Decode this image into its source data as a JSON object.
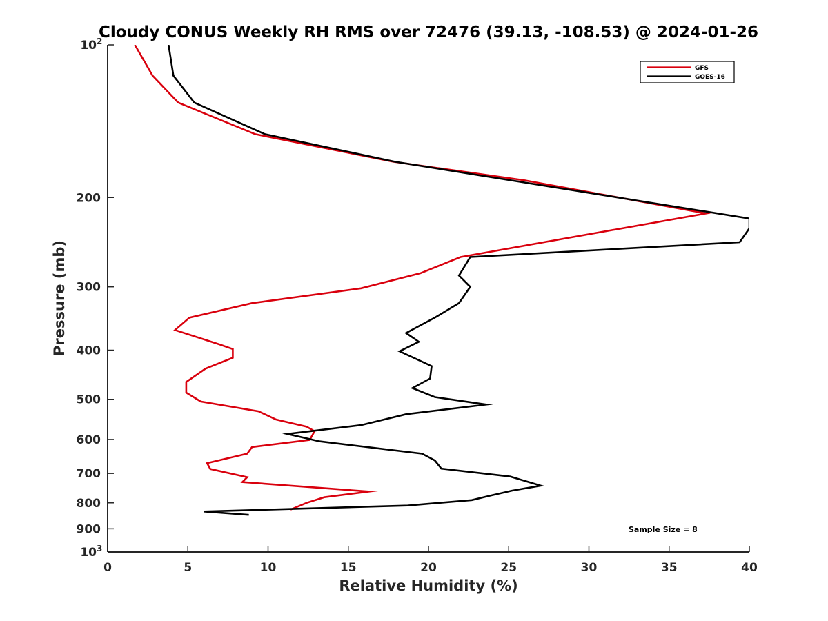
{
  "chart_data": {
    "type": "line",
    "title": "Cloudy CONUS Weekly RH RMS over 72476 (39.13, -108.53) @ 2024-01-26",
    "xlabel": "Relative Humidity (%)",
    "ylabel": "Pressure (mb)",
    "xlim": [
      0,
      40
    ],
    "ylim": [
      100,
      1000
    ],
    "y_scale": "log",
    "y_reversed": true,
    "x_ticks": [
      "0",
      "5",
      "10",
      "15",
      "20",
      "25",
      "30",
      "35",
      "40"
    ],
    "y_ticks": [
      {
        "value": 100,
        "label": "10",
        "exp": "2"
      },
      {
        "value": 200,
        "label": "200"
      },
      {
        "value": 300,
        "label": "300"
      },
      {
        "value": 400,
        "label": "400"
      },
      {
        "value": 500,
        "label": "500"
      },
      {
        "value": 600,
        "label": "600"
      },
      {
        "value": 700,
        "label": "700"
      },
      {
        "value": 800,
        "label": "800"
      },
      {
        "value": 900,
        "label": "900"
      },
      {
        "value": 1000,
        "label": "10",
        "exp": "3"
      }
    ],
    "annotation": "Sample Size = 8",
    "legend_position": "top-right",
    "grid": false,
    "series": [
      {
        "name": "GFS",
        "color": "#d9000d",
        "points": [
          [
            1.7,
            100
          ],
          [
            2.8,
            115
          ],
          [
            4.4,
            130
          ],
          [
            9.2,
            150
          ],
          [
            17.8,
            170
          ],
          [
            26,
            185
          ],
          [
            37.3,
            215
          ],
          [
            22,
            262
          ],
          [
            19.5,
            282
          ],
          [
            15.8,
            302
          ],
          [
            9,
            323
          ],
          [
            5.1,
            345
          ],
          [
            4.2,
            365
          ],
          [
            7,
            390
          ],
          [
            7.8,
            398
          ],
          [
            7.8,
            414
          ],
          [
            6.1,
            435
          ],
          [
            4.9,
            462
          ],
          [
            4.9,
            485
          ],
          [
            5.8,
            505
          ],
          [
            9.4,
            528
          ],
          [
            10.5,
            548
          ],
          [
            12.4,
            566
          ],
          [
            12.9,
            578
          ],
          [
            12.6,
            601
          ],
          [
            9,
            621
          ],
          [
            8.7,
            640
          ],
          [
            6.2,
            668
          ],
          [
            6.4,
            686
          ],
          [
            8.7,
            712
          ],
          [
            8.4,
            728
          ],
          [
            16.3,
            760
          ],
          [
            13.5,
            780
          ],
          [
            12.4,
            800
          ],
          [
            11.4,
            825
          ]
        ]
      },
      {
        "name": "GOES-16",
        "color": "#000000",
        "points": [
          [
            3.8,
            100
          ],
          [
            4.1,
            115
          ],
          [
            5.4,
            130
          ],
          [
            9.8,
            150
          ],
          [
            17.9,
            170
          ],
          [
            40,
            220
          ],
          [
            40,
            230
          ],
          [
            39.4,
            245
          ],
          [
            22.6,
            262
          ],
          [
            21.9,
            285
          ],
          [
            22.6,
            300
          ],
          [
            21.9,
            323
          ],
          [
            20.4,
            345
          ],
          [
            18.6,
            370
          ],
          [
            19.4,
            385
          ],
          [
            18.2,
            402
          ],
          [
            20.2,
            430
          ],
          [
            20.1,
            455
          ],
          [
            19,
            475
          ],
          [
            20.4,
            495
          ],
          [
            23.6,
            512
          ],
          [
            18.6,
            535
          ],
          [
            15.8,
            562
          ],
          [
            11.2,
            585
          ],
          [
            13.2,
            605
          ],
          [
            19.6,
            640
          ],
          [
            20.4,
            660
          ],
          [
            20.8,
            685
          ],
          [
            25.1,
            710
          ],
          [
            27,
            740
          ],
          [
            25.2,
            757
          ],
          [
            23.8,
            775
          ],
          [
            22.7,
            790
          ],
          [
            18.7,
            810
          ],
          [
            6,
            832
          ],
          [
            8.8,
            845
          ]
        ]
      }
    ]
  }
}
